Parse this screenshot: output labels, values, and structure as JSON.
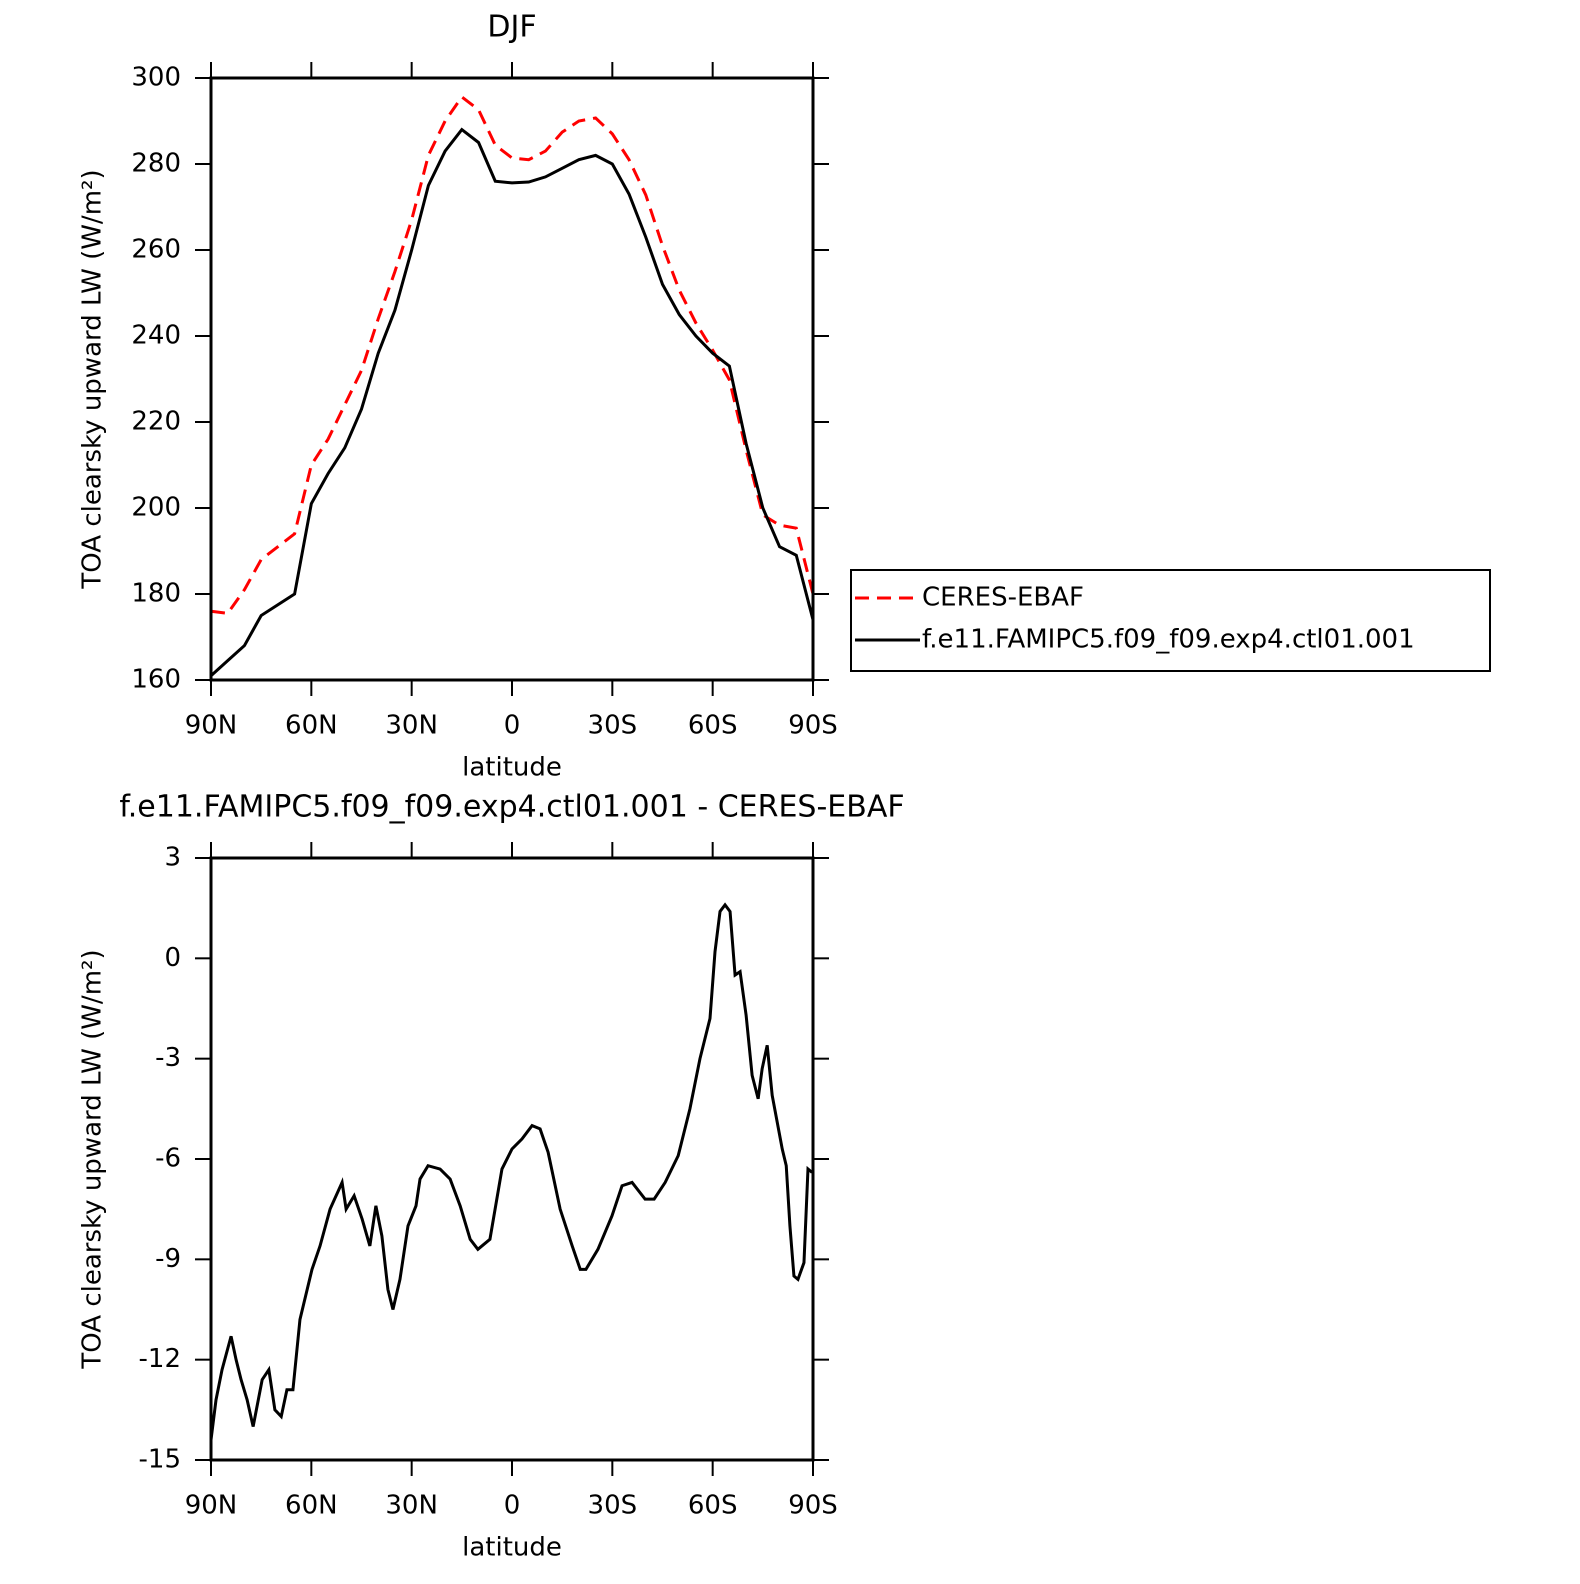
{
  "chart_data": [
    {
      "type": "line",
      "title": "DJF",
      "xlabel": "latitude",
      "ylabel": "TOA clearsky upward LW (W/m²)",
      "xlim": [
        90,
        -90
      ],
      "ylim": [
        160,
        300
      ],
      "xticks": [
        {
          "value": 90,
          "label": "90N"
        },
        {
          "value": 60,
          "label": "60N"
        },
        {
          "value": 30,
          "label": "30N"
        },
        0,
        {
          "value": -30,
          "label": "30S"
        },
        {
          "value": -60,
          "label": "60S"
        },
        {
          "value": -90,
          "label": "90S"
        }
      ],
      "yticks": [
        160,
        180,
        200,
        220,
        240,
        260,
        280,
        300
      ],
      "legend_position": "outside-right",
      "x": [
        90,
        85,
        80,
        75,
        70,
        65,
        60,
        55,
        50,
        45,
        40,
        35,
        30,
        25,
        20,
        15,
        10,
        5,
        0,
        -5,
        -10,
        -15,
        -20,
        -25,
        -30,
        -35,
        -40,
        -45,
        -50,
        -55,
        -60,
        -65,
        -70,
        -75,
        -80,
        -85,
        -90
      ],
      "series": [
        {
          "name": "CERES-EBAF",
          "color": "#ff0000",
          "dash": true,
          "values": [
            176,
            175.5,
            181,
            188,
            191,
            194,
            210,
            216,
            224,
            232,
            244,
            255,
            267,
            282,
            290,
            295.6,
            292.6,
            284.4,
            281.4,
            281,
            283,
            287.4,
            290,
            290.7,
            287,
            281,
            272.8,
            261,
            250.7,
            243,
            236.7,
            229.8,
            213.5,
            198.4,
            196,
            195.3,
            180
          ]
        },
        {
          "name": "f.e11.FAMIPC5.f09_f09.exp4.ctl01.001",
          "color": "#000000",
          "dash": false,
          "values": [
            161,
            164.5,
            168,
            175,
            177.5,
            180,
            201,
            208,
            214,
            223,
            236,
            246,
            260,
            275,
            283,
            288,
            285,
            276,
            275.6,
            275.8,
            277,
            279,
            281,
            282,
            280,
            273,
            263,
            252,
            245,
            240,
            236,
            233,
            215,
            200,
            191,
            189,
            174
          ]
        }
      ]
    },
    {
      "type": "line",
      "title": "f.e11.FAMIPC5.f09_f09.exp4.ctl01.001 - CERES-EBAF",
      "xlabel": "latitude",
      "ylabel": "TOA clearsky upward LW (W/m²)",
      "xlim": [
        90,
        -90
      ],
      "ylim": [
        -15,
        3
      ],
      "xticks": [
        {
          "value": 90,
          "label": "90N"
        },
        {
          "value": 60,
          "label": "60N"
        },
        {
          "value": 30,
          "label": "30N"
        },
        0,
        {
          "value": -30,
          "label": "30S"
        },
        {
          "value": -60,
          "label": "60S"
        },
        {
          "value": -90,
          "label": "90S"
        }
      ],
      "yticks": [
        -15,
        -12,
        -9,
        -6,
        -3,
        0,
        3
      ],
      "color": "#000000",
      "x": [
        90,
        88.5,
        86.7,
        84,
        82.5,
        81,
        79.2,
        77.4,
        74.7,
        72.7,
        70.9,
        69,
        67.3,
        65.5,
        63.4,
        59.8,
        57.4,
        54.4,
        50.8,
        49.6,
        47.2,
        44.8,
        42.5,
        40.7,
        38.9,
        37.1,
        35.6,
        33.5,
        31.1,
        28.7,
        27.5,
        25.1,
        21.5,
        18.5,
        15.5,
        12.5,
        10.2,
        6.6,
        3,
        0,
        -3,
        -6,
        -8.4,
        -10.8,
        -14.4,
        -18,
        -20.4,
        -22.1,
        -25.7,
        -29.9,
        -32.9,
        -35.9,
        -39.8,
        -42.5,
        -45.8,
        -49.7,
        -53.2,
        -56.2,
        -59.2,
        -60.7,
        -62.2,
        -63.7,
        -65.2,
        -66.7,
        -68.2,
        -70,
        -71.8,
        -73.6,
        -74.8,
        -76.3,
        -77.8,
        -80.8,
        -82,
        -83.1,
        -84.3,
        -85.5,
        -87.3,
        -88.5,
        -89.7
      ],
      "values": [
        -14.4,
        -13.2,
        -12.3,
        -11.3,
        -12,
        -12.6,
        -13.2,
        -14,
        -12.6,
        -12.3,
        -13.5,
        -13.7,
        -12.9,
        -12.9,
        -10.8,
        -9.3,
        -8.6,
        -7.5,
        -6.7,
        -7.5,
        -7.1,
        -7.8,
        -8.6,
        -7.4,
        -8.3,
        -9.9,
        -10.5,
        -9.6,
        -8,
        -7.4,
        -6.6,
        -6.2,
        -6.3,
        -6.6,
        -7.4,
        -8.4,
        -8.7,
        -8.4,
        -6.3,
        -5.7,
        -5.4,
        -5,
        -5.1,
        -5.8,
        -7.5,
        -8.6,
        -9.3,
        -9.3,
        -8.7,
        -7.7,
        -6.8,
        -6.7,
        -7.2,
        -7.2,
        -6.7,
        -5.9,
        -4.5,
        -3,
        -1.8,
        0.2,
        1.4,
        1.6,
        1.4,
        -0.5,
        -0.4,
        -1.7,
        -3.5,
        -4.2,
        -3.3,
        -2.6,
        -4.1,
        -5.7,
        -6.2,
        -8,
        -9.5,
        -9.6,
        -9.1,
        -6.3,
        -6.4
      ]
    }
  ]
}
